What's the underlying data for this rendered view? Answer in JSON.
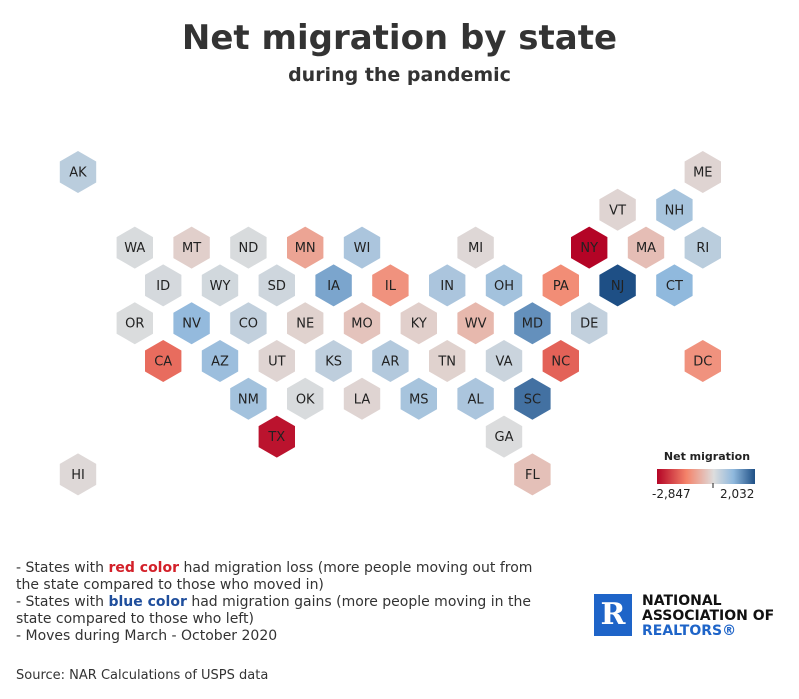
{
  "title": "Net migration by state",
  "subtitle": "during the pandemic",
  "chart_data": {
    "type": "hex-tile-map",
    "value_label": "Net migration",
    "scale": {
      "min": -2847,
      "max": 2032,
      "min_label": "-2,847",
      "max_label": "2,032",
      "center": 0
    },
    "colors": {
      "loss": "#b40426",
      "neutral": "#dddddd",
      "gain": "#1e4f85"
    },
    "states": [
      {
        "abbr": "AK",
        "row": 0,
        "col": 0,
        "value": 450
      },
      {
        "abbr": "ME",
        "row": 0,
        "col": 11,
        "value": -150
      },
      {
        "abbr": "VT",
        "row": 1,
        "col": 9.5,
        "value": -150
      },
      {
        "abbr": "NH",
        "row": 1,
        "col": 10.5,
        "value": 700
      },
      {
        "abbr": "WA",
        "row": 2,
        "col": 1,
        "value": 60
      },
      {
        "abbr": "MT",
        "row": 2,
        "col": 2,
        "value": -250
      },
      {
        "abbr": "ND",
        "row": 2,
        "col": 3,
        "value": 60
      },
      {
        "abbr": "MN",
        "row": 2,
        "col": 4,
        "value": -1000
      },
      {
        "abbr": "WI",
        "row": 2,
        "col": 5,
        "value": 650
      },
      {
        "abbr": "MI",
        "row": 2,
        "col": 7,
        "value": -100
      },
      {
        "abbr": "NY",
        "row": 2,
        "col": 9,
        "value": -2847
      },
      {
        "abbr": "MA",
        "row": 2,
        "col": 10,
        "value": -550
      },
      {
        "abbr": "RI",
        "row": 2,
        "col": 11,
        "value": 450
      },
      {
        "abbr": "ID",
        "row": 3,
        "col": 1.5,
        "value": 100
      },
      {
        "abbr": "WY",
        "row": 3,
        "col": 2.5,
        "value": 150
      },
      {
        "abbr": "SD",
        "row": 3,
        "col": 3.5,
        "value": 200
      },
      {
        "abbr": "IA",
        "row": 3,
        "col": 4.5,
        "value": 1200
      },
      {
        "abbr": "IL",
        "row": 3,
        "col": 5.5,
        "value": -1300
      },
      {
        "abbr": "IN",
        "row": 3,
        "col": 6.5,
        "value": 650
      },
      {
        "abbr": "OH",
        "row": 3,
        "col": 7.5,
        "value": 750
      },
      {
        "abbr": "PA",
        "row": 3,
        "col": 8.5,
        "value": -1400
      },
      {
        "abbr": "NJ",
        "row": 3,
        "col": 9.5,
        "value": 2032
      },
      {
        "abbr": "CT",
        "row": 3,
        "col": 10.5,
        "value": 1000
      },
      {
        "abbr": "OR",
        "row": 4,
        "col": 1,
        "value": 40
      },
      {
        "abbr": "NV",
        "row": 4,
        "col": 2,
        "value": 950
      },
      {
        "abbr": "CO",
        "row": 4,
        "col": 3,
        "value": 350
      },
      {
        "abbr": "NE",
        "row": 4,
        "col": 4,
        "value": -200
      },
      {
        "abbr": "MO",
        "row": 4,
        "col": 5,
        "value": -450
      },
      {
        "abbr": "KY",
        "row": 4,
        "col": 6,
        "value": -250
      },
      {
        "abbr": "WV",
        "row": 4,
        "col": 7,
        "value": -650
      },
      {
        "abbr": "MD",
        "row": 4,
        "col": 8,
        "value": 1400
      },
      {
        "abbr": "DE",
        "row": 4,
        "col": 9,
        "value": 350
      },
      {
        "abbr": "CA",
        "row": 5,
        "col": 1.5,
        "value": -1800
      },
      {
        "abbr": "AZ",
        "row": 5,
        "col": 2.5,
        "value": 850
      },
      {
        "abbr": "UT",
        "row": 5,
        "col": 3.5,
        "value": -150
      },
      {
        "abbr": "KS",
        "row": 5,
        "col": 4.5,
        "value": 400
      },
      {
        "abbr": "AR",
        "row": 5,
        "col": 5.5,
        "value": 550
      },
      {
        "abbr": "TN",
        "row": 5,
        "col": 6.5,
        "value": -200
      },
      {
        "abbr": "VA",
        "row": 5,
        "col": 7.5,
        "value": 250
      },
      {
        "abbr": "NC",
        "row": 5,
        "col": 8.5,
        "value": -1900
      },
      {
        "abbr": "DC",
        "row": 5,
        "col": 11,
        "value": -1300
      },
      {
        "abbr": "NM",
        "row": 6,
        "col": 3,
        "value": 750
      },
      {
        "abbr": "OK",
        "row": 6,
        "col": 4,
        "value": 60
      },
      {
        "abbr": "LA",
        "row": 6,
        "col": 5,
        "value": -150
      },
      {
        "abbr": "MS",
        "row": 6,
        "col": 6,
        "value": 700
      },
      {
        "abbr": "AL",
        "row": 6,
        "col": 7,
        "value": 650
      },
      {
        "abbr": "SC",
        "row": 6,
        "col": 8,
        "value": 1700
      },
      {
        "abbr": "TX",
        "row": 7,
        "col": 3.5,
        "value": -2700
      },
      {
        "abbr": "GA",
        "row": 7,
        "col": 7.5,
        "value": 30
      },
      {
        "abbr": "HI",
        "row": 8,
        "col": 0,
        "value": -80
      },
      {
        "abbr": "FL",
        "row": 8,
        "col": 8,
        "value": -500
      }
    ]
  },
  "notes": {
    "line1_pre": "- States with ",
    "line1_highlight": "red color",
    "line1_post": " had migration loss (more people moving out from the state compared to those who moved in)",
    "line2_pre": "- States with ",
    "line2_highlight": "blue color",
    "line2_post": " had migration gains (more people moving in the state compared to those who left)",
    "line3": "- Moves during March - October 2020"
  },
  "source": "Source: NAR Calculations of USPS data",
  "logo": {
    "icon": "nar-r-logo-icon",
    "mark": "R",
    "line1": "NATIONAL",
    "line2": "ASSOCIATION OF",
    "line3": "REALTORS®"
  }
}
